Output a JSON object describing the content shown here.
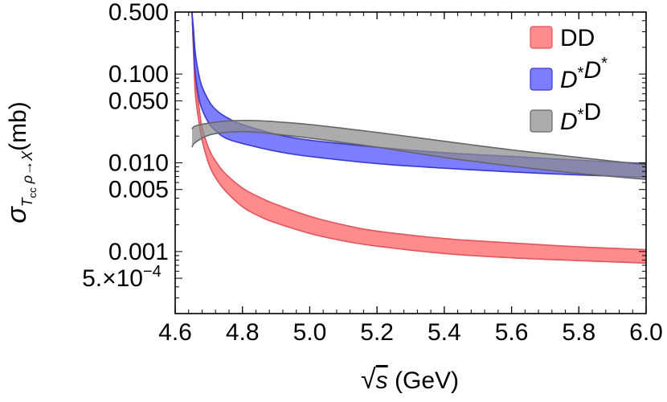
{
  "chart_data": {
    "type": "area",
    "title": "",
    "xlabel": "√s (GeV)",
    "xlabel_parts": {
      "sqrt": "√",
      "var": "s",
      "unit": "(GeV)"
    },
    "ylabel": "σTcc ρ→X(mb)",
    "ylabel_parts": {
      "sigma": "σ",
      "T": "T",
      "cc": "cc",
      "rho": "ρ",
      "arrow": "→",
      "X": "X",
      "unit": "(mb)"
    },
    "xlim": [
      4.6,
      6.0
    ],
    "ylim": [
      0.0002,
      0.5
    ],
    "yscale": "log",
    "x_ticks": [
      4.6,
      4.8,
      5.0,
      5.2,
      5.4,
      5.6,
      5.8,
      6.0
    ],
    "x_tick_labels": [
      "4.6",
      "4.8",
      "5.0",
      "5.2",
      "5.4",
      "5.6",
      "5.8",
      "6.0"
    ],
    "y_ticks": [
      0.5,
      0.1,
      0.05,
      0.01,
      0.005,
      0.001,
      0.0005
    ],
    "y_tick_labels": [
      "0.500",
      "0.100",
      "0.050",
      "0.010",
      "0.005",
      "0.001",
      "5.×10"
    ],
    "y_tick_exponent": "−4",
    "legend_position": "top-right",
    "grid": false,
    "series": [
      {
        "name": "DD",
        "legend_parts": [
          {
            "t": "DD",
            "italic": false
          }
        ],
        "color": "#ff6666",
        "fill_opacity": 0.75,
        "stroke": "#e0555e",
        "x": [
          4.65,
          4.655,
          4.66,
          4.67,
          4.68,
          4.7,
          4.72,
          4.75,
          4.8,
          4.85,
          4.9,
          5.0,
          5.1,
          5.2,
          5.4,
          5.6,
          5.8,
          6.0
        ],
        "upper": [
          0.5,
          0.2,
          0.09,
          0.045,
          0.025,
          0.0145,
          0.0105,
          0.0075,
          0.0052,
          0.0041,
          0.0034,
          0.0025,
          0.002,
          0.0017,
          0.0014,
          0.00125,
          0.00113,
          0.00105
        ],
        "lower": [
          0.5,
          0.16,
          0.06,
          0.03,
          0.018,
          0.0097,
          0.0068,
          0.0048,
          0.0032,
          0.0025,
          0.0021,
          0.0016,
          0.00132,
          0.00115,
          0.00095,
          0.00085,
          0.00079,
          0.00074
        ]
      },
      {
        "name": "D*D*",
        "legend_parts": [
          {
            "t": "D",
            "italic": true
          },
          {
            "t": "*",
            "sup": true
          },
          {
            "t": "D",
            "italic": true
          },
          {
            "t": "*",
            "sup": true
          }
        ],
        "color": "#6666ff",
        "fill_opacity": 0.85,
        "stroke": "#3a3ad0",
        "x": [
          4.65,
          4.655,
          4.66,
          4.67,
          4.68,
          4.7,
          4.72,
          4.75,
          4.8,
          4.9,
          5.0,
          5.2,
          5.4,
          5.6,
          5.8,
          6.0
        ],
        "upper": [
          0.5,
          0.3,
          0.17,
          0.1,
          0.072,
          0.05,
          0.04,
          0.033,
          0.027,
          0.021,
          0.018,
          0.015,
          0.013,
          0.0118,
          0.0107,
          0.0098
        ],
        "lower": [
          0.5,
          0.2,
          0.1,
          0.055,
          0.04,
          0.028,
          0.023,
          0.019,
          0.0165,
          0.0135,
          0.0118,
          0.0098,
          0.0087,
          0.0079,
          0.0073,
          0.0069
        ]
      },
      {
        "name": "D*D",
        "legend_parts": [
          {
            "t": "D",
            "italic": true
          },
          {
            "t": "*",
            "sup": true
          },
          {
            "t": "D",
            "italic": false
          }
        ],
        "color": "#8c8c8c",
        "fill_opacity": 0.72,
        "stroke": "#666666",
        "x": [
          4.65,
          4.66,
          4.7,
          4.75,
          4.8,
          4.85,
          4.9,
          5.0,
          5.2,
          5.4,
          5.6,
          5.8,
          6.0
        ],
        "upper": [
          0.024,
          0.026,
          0.028,
          0.0295,
          0.03,
          0.0298,
          0.029,
          0.027,
          0.022,
          0.0175,
          0.014,
          0.0115,
          0.0095
        ],
        "lower": [
          0.015,
          0.017,
          0.0205,
          0.022,
          0.0225,
          0.022,
          0.021,
          0.019,
          0.015,
          0.0115,
          0.0092,
          0.0076,
          0.0065
        ]
      }
    ]
  }
}
